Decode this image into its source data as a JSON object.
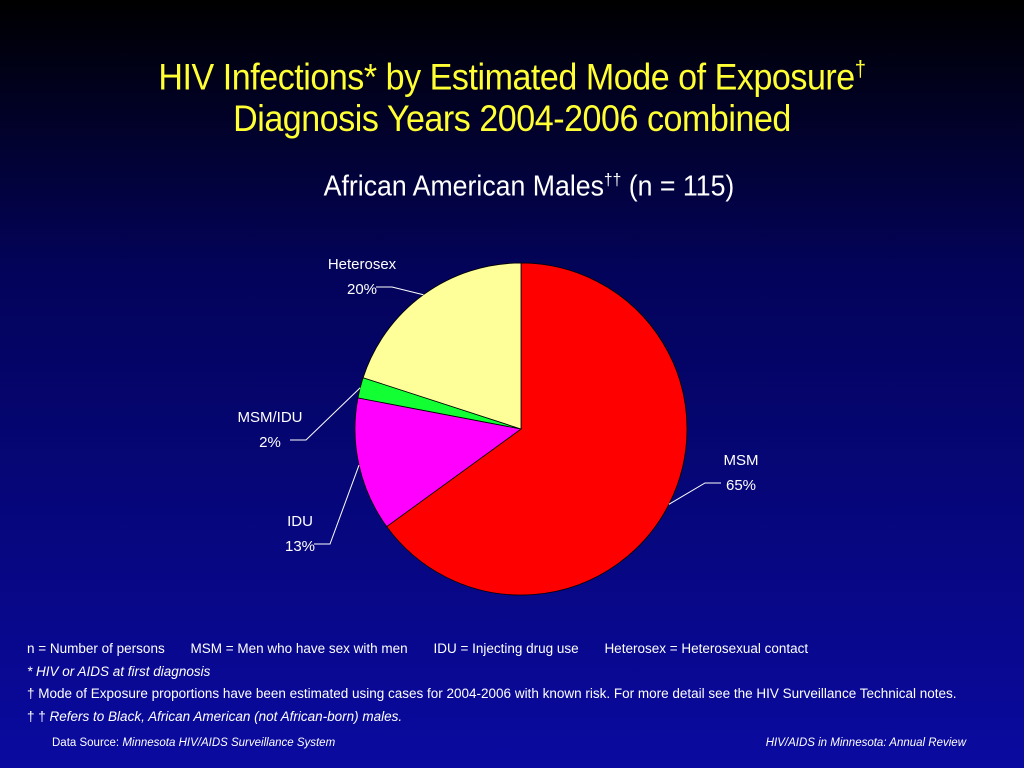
{
  "title_line1": "HIV Infections* by Estimated Mode of Exposure",
  "title_line1_mark": "†",
  "title_line2": "Diagnosis Years 2004-2006 combined",
  "subtitle_text": "African American Males",
  "subtitle_mark": "††",
  "subtitle_n": " (n = 115)",
  "chart_data": {
    "type": "pie",
    "slices": [
      {
        "label": "MSM",
        "value": 65,
        "value_label": "65%",
        "color": "#ff0000"
      },
      {
        "label": "IDU",
        "value": 13,
        "value_label": "13%",
        "color": "#ff00ff"
      },
      {
        "label": "MSM/IDU",
        "value": 2,
        "value_label": "2%",
        "color": "#11ff33"
      },
      {
        "label": "Heterosex",
        "value": 20,
        "value_label": "20%",
        "color": "#ffff99"
      }
    ]
  },
  "notes": {
    "abbrev": [
      "n = Number of persons",
      "MSM = Men who have sex with men",
      "IDU = Injecting drug use",
      "Heterosex = Heterosexual contact"
    ],
    "star_mark": "*",
    "star_text": " HIV or AIDS at first diagnosis",
    "dagger_mark": "†",
    "dagger_text": " Mode of Exposure proportions have been estimated using cases for 2004-2006 with known risk. For more detail see the HIV Surveillance Technical notes.",
    "ddagger_mark": "† †",
    "ddagger_text": " Refers to Black, African American (not African-born) males."
  },
  "footer": {
    "source_label": "Data Source: ",
    "source_name": "Minnesota HIV/AIDS Surveillance System",
    "right_text": "HIV/AIDS in Minnesota: Annual Review"
  }
}
